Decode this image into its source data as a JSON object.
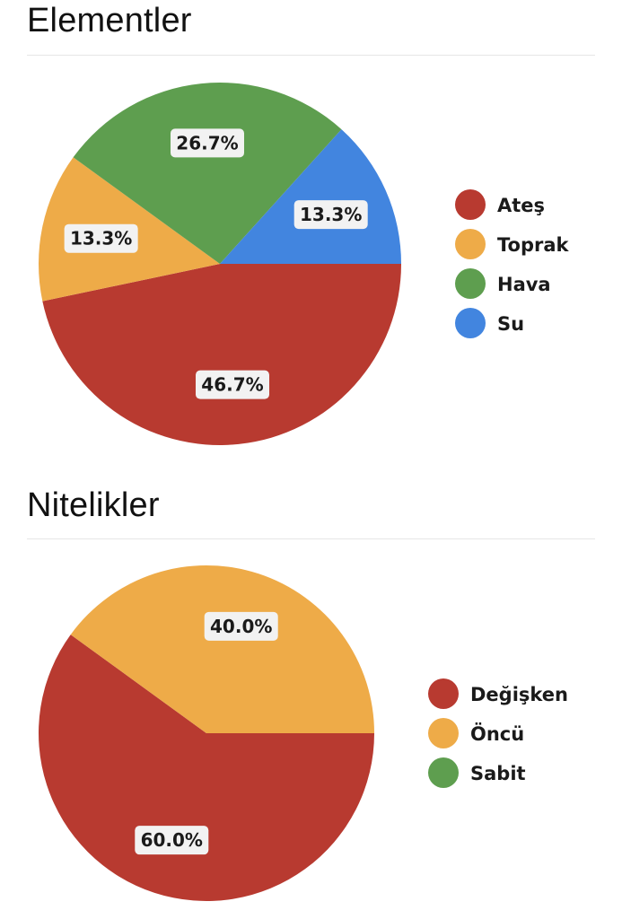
{
  "sections": [
    {
      "title": "Elementler"
    },
    {
      "title": "Nitelikler"
    }
  ],
  "chart_data": [
    {
      "type": "pie",
      "title": "Elementler",
      "categories": [
        "Ateş",
        "Toprak",
        "Hava",
        "Su"
      ],
      "values": [
        46.7,
        13.3,
        26.7,
        13.3
      ],
      "labels": [
        "46.7%",
        "13.3%",
        "26.7%",
        "13.3%"
      ],
      "colors": [
        "#b83a30",
        "#eeab48",
        "#5e9e4f",
        "#4285df"
      ],
      "legend_position": "right"
    },
    {
      "type": "pie",
      "title": "Nitelikler",
      "categories": [
        "Değişken",
        "Öncü",
        "Sabit"
      ],
      "values": [
        60.0,
        40.0,
        0.0
      ],
      "labels": [
        "60.0%",
        "40.0%",
        ""
      ],
      "colors": [
        "#b83a30",
        "#eeab48",
        "#5e9e4f"
      ],
      "legend_position": "right"
    }
  ]
}
